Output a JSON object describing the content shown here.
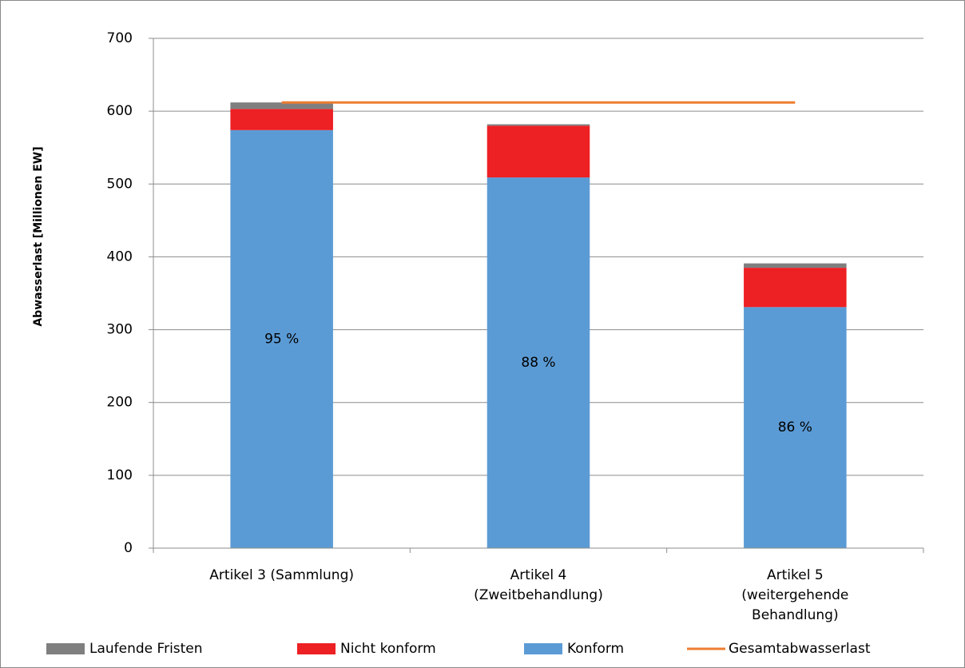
{
  "chart_data": {
    "type": "stacked_bar",
    "ylabel": "Abwasserlast [Millionen EW]",
    "categories": [
      [
        "Artikel 3 (Sammlung)"
      ],
      [
        "Artikel 4",
        "(Zweitbehandlung)"
      ],
      [
        "Artikel 5",
        "(weitergehende",
        "Behandlung)"
      ]
    ],
    "series": [
      {
        "name": "Laufende Fristen",
        "color": "#7f7f7f",
        "values": [
          9,
          2,
          6
        ]
      },
      {
        "name": "Nicht konform",
        "color": "#ed2024",
        "values": [
          29,
          71,
          54
        ]
      },
      {
        "name": "Konform",
        "color": "#5b9bd5",
        "values": [
          574,
          509,
          331
        ]
      },
      {
        "name": "Gesamtabwasserlast",
        "color": "#ed7d31",
        "type": "line",
        "values": [
          612,
          612,
          612
        ]
      }
    ],
    "annotations": [
      "95 %",
      "88 %",
      "86 %"
    ],
    "ylim": [
      0,
      700
    ],
    "yticks": [
      0,
      100,
      200,
      300,
      400,
      500,
      600,
      700
    ],
    "grid": true
  }
}
